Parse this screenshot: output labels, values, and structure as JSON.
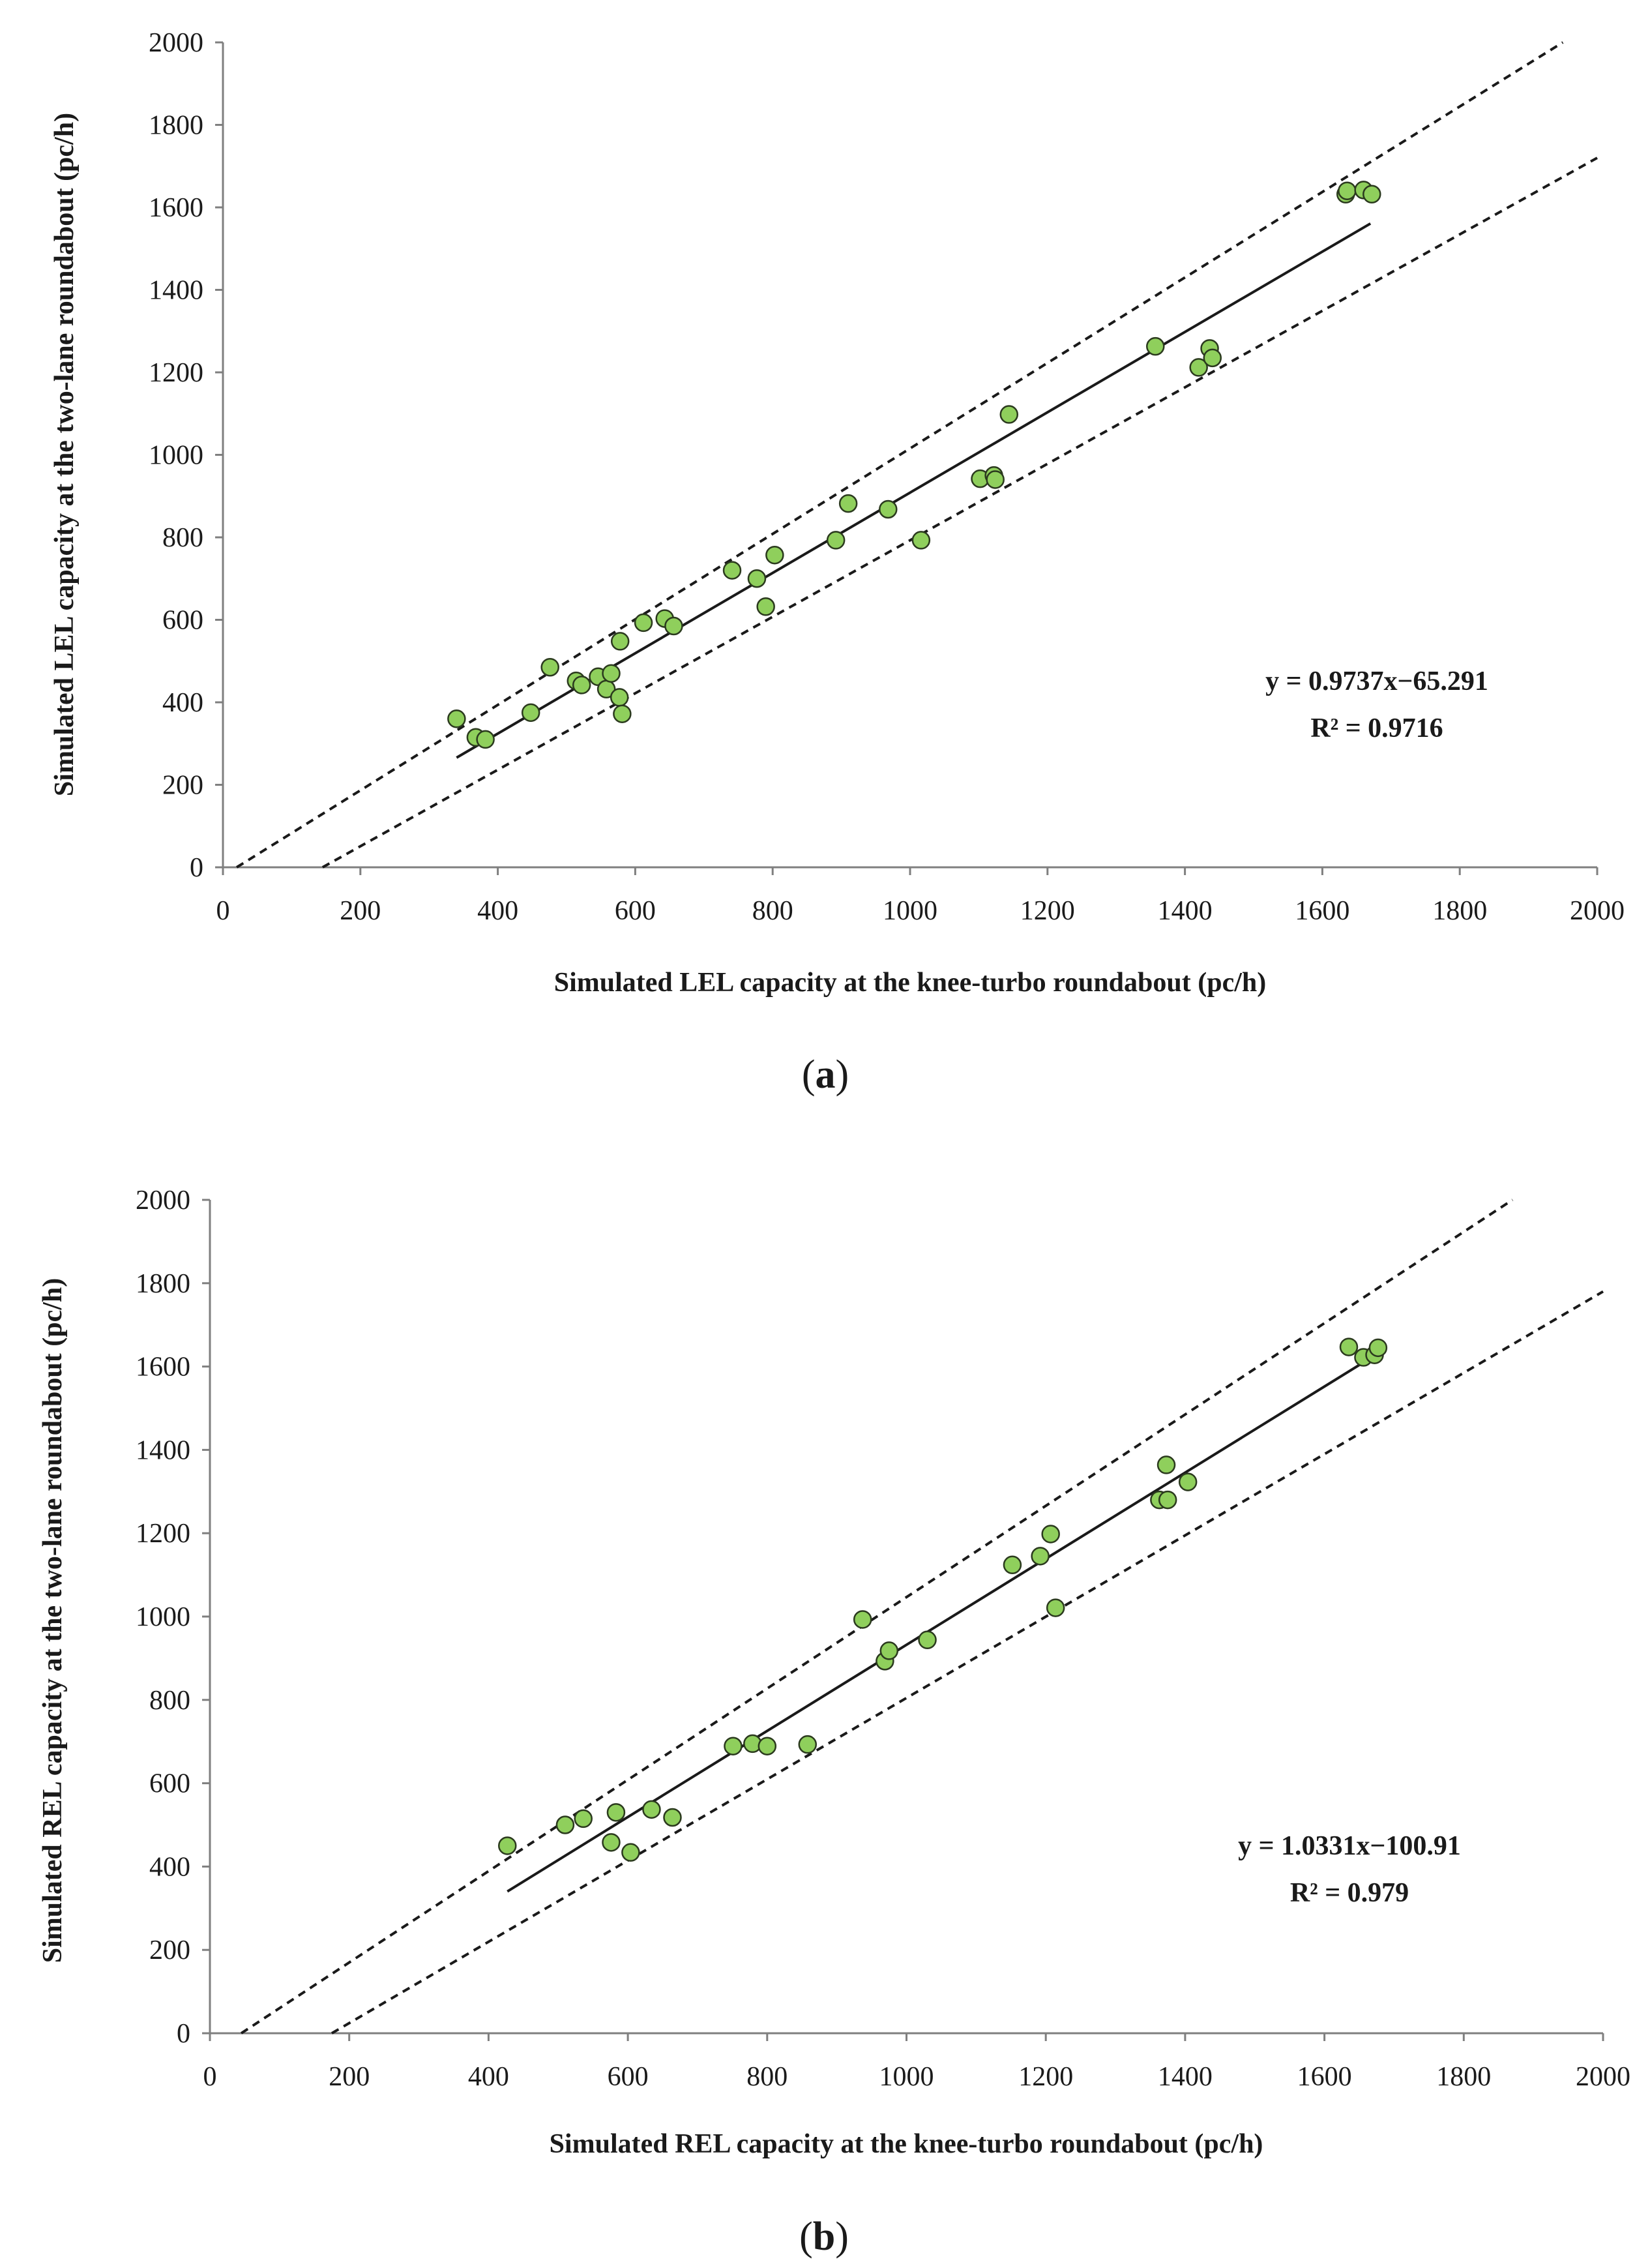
{
  "chart_data": [
    {
      "type": "scatter",
      "panel": "(a)",
      "panel_letter": "a",
      "xlabel": "Simulated LEL capacity at the knee-turbo roundabout (pc/h)",
      "ylabel": "Simulated LEL capacity at the two-lane roundabout (pc/h)",
      "xlim": [
        0,
        2000
      ],
      "ylim": [
        0,
        2000
      ],
      "xticks": [
        "0",
        "200",
        "400",
        "600",
        "800",
        "1000",
        "1200",
        "1400",
        "1600",
        "1800",
        "2000"
      ],
      "yticks": [
        "0",
        "200",
        "400",
        "600",
        "800",
        "1000",
        "1200",
        "1400",
        "1600",
        "1800",
        "2000"
      ],
      "equation": "y = 0.9737x−65.291",
      "r2": "R² = 0.9716",
      "regression": {
        "slope": 0.9737,
        "intercept": -65.291,
        "x_range": [
          340,
          1670
        ]
      },
      "bounds": [
        {
          "x": [
            20,
            1950
          ],
          "y": [
            0,
            2000
          ]
        },
        {
          "x": [
            145,
            2000
          ],
          "y": [
            0,
            1720
          ]
        }
      ],
      "point_color": "#8fcf5c",
      "points": [
        [
          340,
          360
        ],
        [
          368,
          315
        ],
        [
          382,
          310
        ],
        [
          448,
          375
        ],
        [
          476,
          485
        ],
        [
          514,
          452
        ],
        [
          522,
          442
        ],
        [
          546,
          462
        ],
        [
          558,
          432
        ],
        [
          565,
          470
        ],
        [
          578,
          548
        ],
        [
          577,
          412
        ],
        [
          581,
          372
        ],
        [
          612,
          593
        ],
        [
          643,
          603
        ],
        [
          656,
          585
        ],
        [
          741,
          720
        ],
        [
          777,
          700
        ],
        [
          790,
          632
        ],
        [
          803,
          757
        ],
        [
          892,
          793
        ],
        [
          910,
          882
        ],
        [
          968,
          868
        ],
        [
          1016,
          793
        ],
        [
          1102,
          942
        ],
        [
          1122,
          950
        ],
        [
          1124,
          940
        ],
        [
          1144,
          1098
        ],
        [
          1357,
          1263
        ],
        [
          1420,
          1212
        ],
        [
          1436,
          1258
        ],
        [
          1440,
          1235
        ],
        [
          1634,
          1632
        ],
        [
          1636,
          1640
        ],
        [
          1660,
          1642
        ],
        [
          1672,
          1632
        ]
      ]
    },
    {
      "type": "scatter",
      "panel": "(b)",
      "panel_letter": "b",
      "xlabel": "Simulated REL capacity at the knee-turbo roundabout (pc/h)",
      "ylabel": "Simulated REL capacity at the two-lane roundabout (pc/h)",
      "xlim": [
        0,
        2000
      ],
      "ylim": [
        0,
        2000
      ],
      "xticks": [
        "0",
        "200",
        "400",
        "600",
        "800",
        "1000",
        "1200",
        "1400",
        "1600",
        "1800",
        "2000"
      ],
      "yticks": [
        "0",
        "200",
        "400",
        "600",
        "800",
        "1000",
        "1200",
        "1400",
        "1600",
        "1800",
        "2000"
      ],
      "equation": "y = 1.0331x−100.91",
      "r2": "R² = 0.979",
      "regression": {
        "slope": 1.0331,
        "intercept": -100.91,
        "x_range": [
          427,
          1676
        ]
      },
      "bounds": [
        {
          "x": [
            45,
            1870
          ],
          "y": [
            0,
            2000
          ]
        },
        {
          "x": [
            175,
            2000
          ],
          "y": [
            0,
            1780
          ]
        }
      ],
      "point_color": "#8fcf5c",
      "points": [
        [
          427,
          450
        ],
        [
          510,
          500
        ],
        [
          536,
          515
        ],
        [
          583,
          530
        ],
        [
          576,
          458
        ],
        [
          604,
          434
        ],
        [
          634,
          537
        ],
        [
          664,
          518
        ],
        [
          751,
          689
        ],
        [
          779,
          695
        ],
        [
          800,
          689
        ],
        [
          858,
          693
        ],
        [
          937,
          993
        ],
        [
          969,
          893
        ],
        [
          975,
          918
        ],
        [
          1030,
          944
        ],
        [
          1152,
          1124
        ],
        [
          1192,
          1145
        ],
        [
          1207,
          1198
        ],
        [
          1214,
          1021
        ],
        [
          1363,
          1280
        ],
        [
          1373,
          1364
        ],
        [
          1375,
          1280
        ],
        [
          1404,
          1323
        ],
        [
          1635,
          1647
        ],
        [
          1656,
          1622
        ],
        [
          1672,
          1628
        ],
        [
          1677,
          1645
        ]
      ]
    }
  ]
}
